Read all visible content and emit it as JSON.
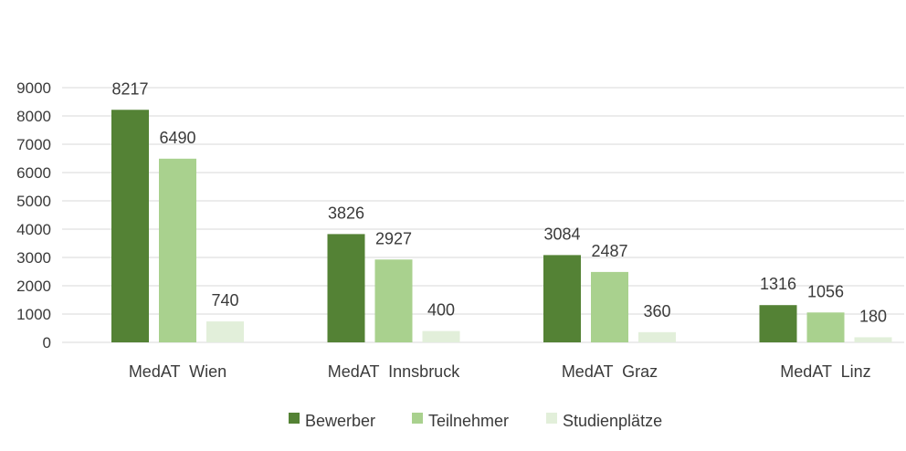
{
  "chart_data": {
    "type": "bar",
    "title": "",
    "xlabel": "",
    "ylabel": "",
    "categories": [
      "MedAT  Wien",
      "MedAT  Innsbruck",
      "MedAT  Graz",
      "MedAT  Linz"
    ],
    "series": [
      {
        "name": "Bewerber",
        "values": [
          8217,
          3826,
          3084,
          1316
        ],
        "color": "#548235"
      },
      {
        "name": "Teilnehmer",
        "values": [
          6490,
          2927,
          2487,
          1056
        ],
        "color": "#a9d18e"
      },
      {
        "name": "Studienplätze",
        "values": [
          740,
          400,
          360,
          180
        ],
        "color": "#e2efda"
      }
    ],
    "ylim": [
      0,
      9000
    ],
    "yticks": [
      0,
      1000,
      2000,
      3000,
      4000,
      5000,
      6000,
      7000,
      8000,
      9000
    ],
    "grid": true,
    "legend": "bottom",
    "data_labels": true,
    "gridline_color": "#d9d9d9",
    "text_color": "#3a3a3a"
  }
}
